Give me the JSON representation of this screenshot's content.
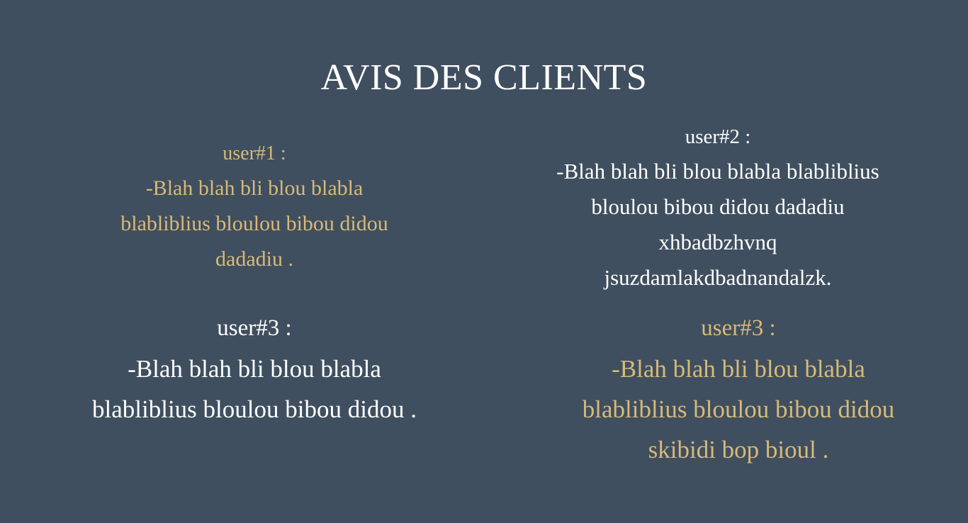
{
  "page": {
    "title": "AVIS DES CLIENTS",
    "background_color": "#3f4f5f"
  },
  "colors": {
    "accent_gold": "#d9b978",
    "text_white": "#ffffff"
  },
  "reviews": [
    {
      "user": "user#1  :",
      "lines": [
        "-Blah blah bli blou blabla",
        "blabliblius bloulou bibou didou",
        "dadadiu ."
      ],
      "color": "gold"
    },
    {
      "user": "user#2 :",
      "lines": [
        "-Blah blah bli blou blabla blabliblius",
        "bloulou bibou didou dadadiu",
        "xhbadbzhvnq",
        "jsuzdamlakdbadnandalzk."
      ],
      "color": "white"
    },
    {
      "user": "user#3 :",
      "lines": [
        "-Blah blah bli blou blabla",
        "blabliblius bloulou bibou didou ."
      ],
      "color": "white"
    },
    {
      "user": "user#3 :",
      "lines": [
        "-Blah blah bli blou blabla",
        "blabliblius bloulou bibou didou",
        "skibidi bop bioul ."
      ],
      "color": "gold"
    }
  ]
}
